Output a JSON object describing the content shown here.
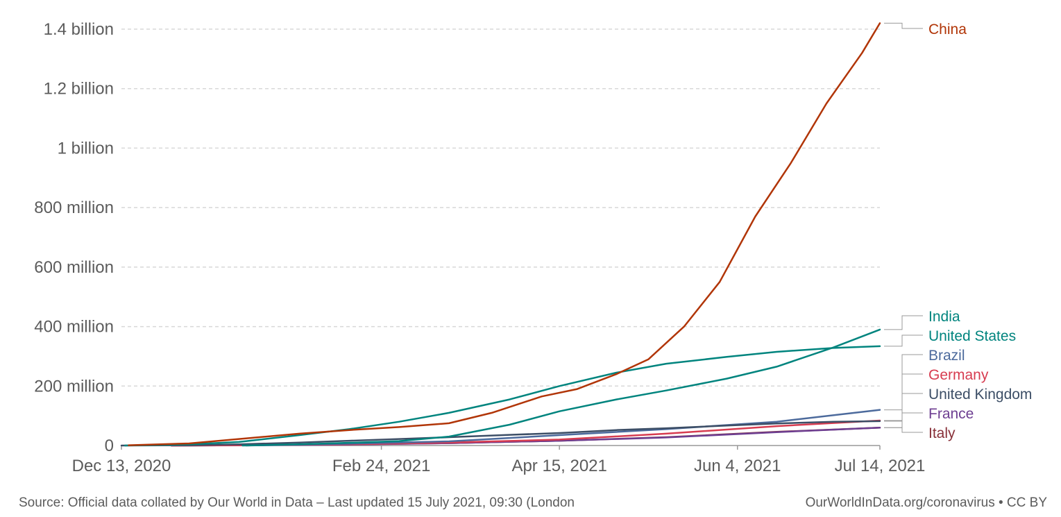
{
  "chart_data": {
    "type": "line",
    "x_type": "date",
    "xlim": [
      "2020-12-13",
      "2021-07-14"
    ],
    "ylim": [
      0,
      1400000000
    ],
    "y_ticks": [
      0,
      200000000,
      400000000,
      600000000,
      800000000,
      1000000000,
      1200000000,
      1400000000
    ],
    "y_tick_labels": [
      "0",
      "200 million",
      "400 million",
      "600 million",
      "800 million",
      "1 billion",
      "1.2 billion",
      "1.4 billion"
    ],
    "x_ticks": [
      "2020-12-13",
      "2021-02-24",
      "2021-04-15",
      "2021-06-04",
      "2021-07-14"
    ],
    "x_tick_labels": [
      "Dec 13, 2020",
      "Feb 24, 2021",
      "Apr 15, 2021",
      "Jun 4, 2021",
      "Jul 14, 2021"
    ],
    "grid": "horizontal dashed",
    "legend": "right, end-of-line labels",
    "series": [
      {
        "name": "China",
        "color": "#b13507",
        "x": [
          "2020-12-15",
          "2021-01-01",
          "2021-01-15",
          "2021-02-01",
          "2021-02-15",
          "2021-03-01",
          "2021-03-15",
          "2021-03-27",
          "2021-04-10",
          "2021-04-20",
          "2021-05-01",
          "2021-05-10",
          "2021-05-20",
          "2021-05-30",
          "2021-06-09",
          "2021-06-19",
          "2021-06-29",
          "2021-07-09",
          "2021-07-14"
        ],
        "values": [
          1000000,
          7000000,
          22000000,
          40000000,
          52000000,
          62000000,
          75000000,
          110000000,
          165000000,
          190000000,
          240000000,
          290000000,
          400000000,
          550000000,
          770000000,
          950000000,
          1150000000,
          1320000000,
          1420000000
        ]
      },
      {
        "name": "India",
        "color": "#00847e",
        "x": [
          "2021-01-16",
          "2021-02-01",
          "2021-02-20",
          "2021-03-01",
          "2021-03-15",
          "2021-04-01",
          "2021-04-15",
          "2021-05-01",
          "2021-05-15",
          "2021-06-01",
          "2021-06-15",
          "2021-07-01",
          "2021-07-14"
        ],
        "values": [
          0,
          4000000,
          11000000,
          15000000,
          30000000,
          70000000,
          115000000,
          155000000,
          185000000,
          225000000,
          265000000,
          330000000,
          390000000
        ]
      },
      {
        "name": "United States",
        "color": "#00847e",
        "x": [
          "2020-12-14",
          "2021-01-01",
          "2021-01-15",
          "2021-02-01",
          "2021-02-15",
          "2021-03-01",
          "2021-03-15",
          "2021-04-01",
          "2021-04-15",
          "2021-05-01",
          "2021-05-15",
          "2021-06-01",
          "2021-06-15",
          "2021-07-01",
          "2021-07-14"
        ],
        "values": [
          0,
          4000000,
          12000000,
          35000000,
          55000000,
          80000000,
          110000000,
          155000000,
          200000000,
          245000000,
          275000000,
          298000000,
          315000000,
          328000000,
          334000000
        ]
      },
      {
        "name": "Brazil",
        "color": "#4c6a9c",
        "x": [
          "2021-01-17",
          "2021-02-15",
          "2021-03-15",
          "2021-04-15",
          "2021-05-15",
          "2021-06-15",
          "2021-07-14"
        ],
        "values": [
          0,
          6000000,
          14000000,
          35000000,
          55000000,
          80000000,
          120000000
        ]
      },
      {
        "name": "Germany",
        "color": "#d73c50",
        "x": [
          "2020-12-27",
          "2021-01-15",
          "2021-02-15",
          "2021-03-15",
          "2021-04-15",
          "2021-05-15",
          "2021-06-15",
          "2021-07-14"
        ],
        "values": [
          0,
          1000000,
          4000000,
          10000000,
          20000000,
          40000000,
          65000000,
          84000000
        ]
      },
      {
        "name": "United Kingdom",
        "color": "#3c4e66",
        "x": [
          "2020-12-08",
          "2021-01-01",
          "2021-01-15",
          "2021-02-01",
          "2021-02-15",
          "2021-03-01",
          "2021-03-15",
          "2021-04-01",
          "2021-04-15",
          "2021-05-01",
          "2021-05-15",
          "2021-06-01",
          "2021-06-15",
          "2021-07-01",
          "2021-07-14"
        ],
        "values": [
          0,
          1000000,
          4000000,
          10000000,
          16000000,
          22000000,
          28000000,
          36000000,
          42000000,
          52000000,
          58000000,
          67000000,
          74000000,
          80000000,
          82000000
        ]
      },
      {
        "name": "France",
        "color": "#6d3e91",
        "x": [
          "2020-12-27",
          "2021-01-15",
          "2021-02-15",
          "2021-03-15",
          "2021-04-15",
          "2021-05-15",
          "2021-06-15",
          "2021-07-14"
        ],
        "values": [
          0,
          400000,
          3000000,
          8000000,
          16000000,
          27000000,
          45000000,
          60000000
        ]
      },
      {
        "name": "Italy",
        "color": "#883039",
        "x": [
          "2020-12-27",
          "2021-01-15",
          "2021-02-15",
          "2021-03-15",
          "2021-04-15",
          "2021-05-15",
          "2021-06-15",
          "2021-07-14"
        ],
        "values": [
          0,
          1000000,
          4000000,
          8000000,
          16000000,
          28000000,
          46000000,
          60000000
        ]
      }
    ],
    "legend_entries": [
      {
        "name": "China",
        "color": "#b13507"
      },
      {
        "name": "India",
        "color": "#00847e"
      },
      {
        "name": "United States",
        "color": "#00847e"
      },
      {
        "name": "Brazil",
        "color": "#4c6a9c"
      },
      {
        "name": "Germany",
        "color": "#d73c50"
      },
      {
        "name": "United Kingdom",
        "color": "#3c4e66"
      },
      {
        "name": "France",
        "color": "#6d3e91"
      },
      {
        "name": "Italy",
        "color": "#883039"
      }
    ]
  },
  "footer": {
    "source": "Source: Official data collated by Our World in Data – Last updated 15 July 2021, 09:30 (London",
    "credit": "OurWorldInData.org/coronavirus • CC BY"
  }
}
